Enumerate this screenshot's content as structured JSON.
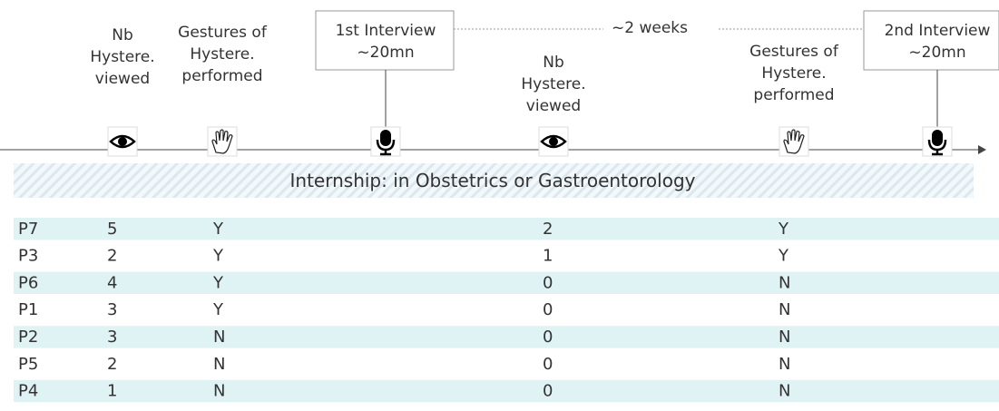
{
  "timeline": {
    "events": [
      {
        "lines": [
          "Nb",
          "Hystere.",
          "viewed"
        ],
        "icon": "eye"
      },
      {
        "lines": [
          "Gestures of",
          "Hystere.",
          "performed"
        ],
        "icon": "hand"
      },
      {
        "lines": [
          "1st Interview",
          "~20mn"
        ],
        "icon": "mic"
      },
      {
        "lines": [
          "Nb",
          "Hystere.",
          "viewed"
        ],
        "icon": "eye"
      },
      {
        "lines": [
          "Gestures of",
          "Hystere.",
          "performed"
        ],
        "icon": "hand"
      },
      {
        "lines": [
          "2nd Interview",
          "~20mn"
        ],
        "icon": "mic"
      }
    ],
    "gap_label": "~2 weeks",
    "banner": "Internship: in Obstetrics or Gastroentorology"
  },
  "table": {
    "rows": [
      [
        "P7",
        "5",
        "Y",
        "2",
        "Y"
      ],
      [
        "P3",
        "2",
        "Y",
        "1",
        "Y"
      ],
      [
        "P6",
        "4",
        "Y",
        "0",
        "N"
      ],
      [
        "P1",
        "3",
        "Y",
        "0",
        "N"
      ],
      [
        "P2",
        "3",
        "N",
        "0",
        "N"
      ],
      [
        "P5",
        "2",
        "N",
        "0",
        "N"
      ],
      [
        "P4",
        "1",
        "N",
        "0",
        "N"
      ]
    ]
  }
}
